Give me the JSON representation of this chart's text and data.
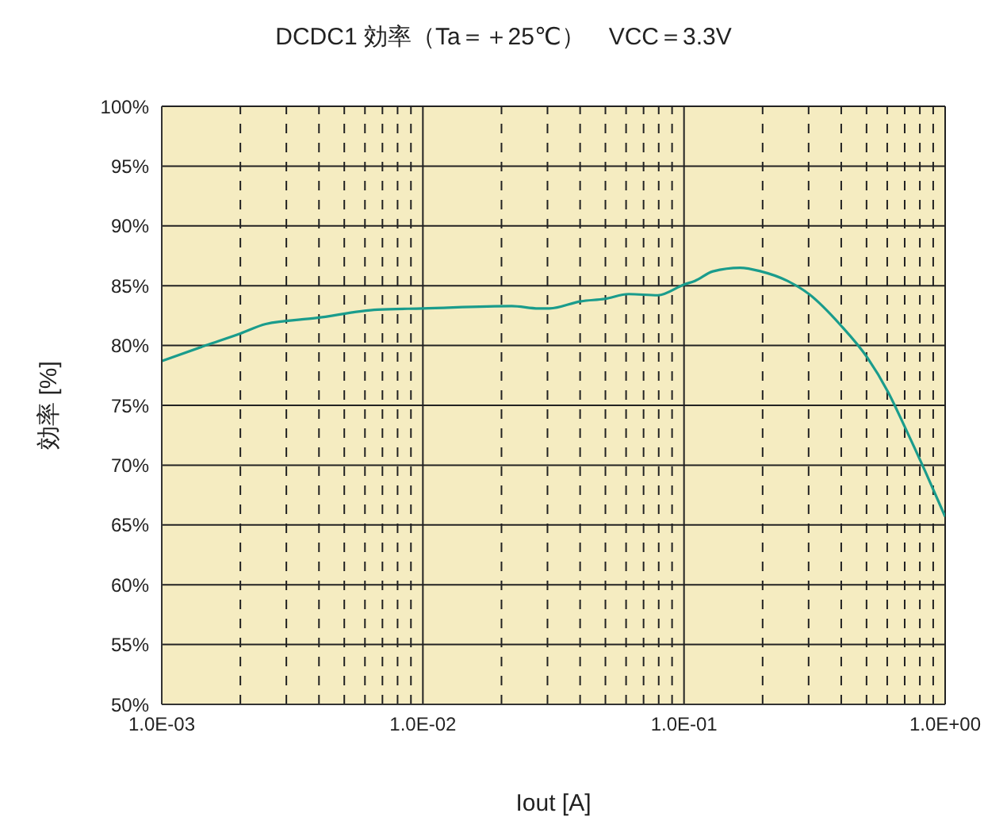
{
  "chart_data": {
    "type": "line",
    "title": "DCDC1 効率（Ta＝＋25℃）　VCC＝3.3V",
    "xlabel": "Iout [A]",
    "ylabel": "効率 [%]",
    "x": [
      0.001,
      0.00147,
      0.002,
      0.0025,
      0.0039,
      0.0067,
      0.01,
      0.0219,
      0.0277,
      0.0305,
      0.0403,
      0.0498,
      0.0614,
      0.0794,
      0.1,
      0.11,
      0.129,
      0.164,
      0.197,
      0.249,
      0.301,
      0.398,
      0.503,
      0.605,
      0.697,
      0.838,
      1.0
    ],
    "series": [
      {
        "color": "#1a9c8c",
        "values": [
          78.7,
          80.0,
          81.0,
          81.8,
          82.3,
          83.0,
          83.1,
          83.3,
          83.1,
          83.1,
          83.7,
          83.9,
          84.3,
          84.2,
          85.1,
          85.4,
          86.2,
          86.5,
          86.2,
          85.4,
          84.3,
          81.7,
          79.0,
          76.1,
          73.3,
          69.5,
          65.7
        ]
      }
    ],
    "log": "x",
    "xlim": [
      0.001,
      1
    ],
    "ylim": [
      50,
      100
    ],
    "xticks": [
      {
        "value": 0.001,
        "label": "1.0E-03"
      },
      {
        "value": 0.002,
        "label": null
      },
      {
        "value": 0.003,
        "label": null
      },
      {
        "value": 0.004,
        "label": null
      },
      {
        "value": 0.005,
        "label": null
      },
      {
        "value": 0.006,
        "label": null
      },
      {
        "value": 0.007,
        "label": null
      },
      {
        "value": 0.008,
        "label": null
      },
      {
        "value": 0.009,
        "label": null
      },
      {
        "value": 0.01,
        "label": "1.0E-02"
      },
      {
        "value": 0.02,
        "label": null
      },
      {
        "value": 0.03,
        "label": null
      },
      {
        "value": 0.04,
        "label": null
      },
      {
        "value": 0.05,
        "label": null
      },
      {
        "value": 0.06,
        "label": null
      },
      {
        "value": 0.07,
        "label": null
      },
      {
        "value": 0.08,
        "label": null
      },
      {
        "value": 0.09,
        "label": null
      },
      {
        "value": 0.1,
        "label": "1.0E-01"
      },
      {
        "value": 0.2,
        "label": null
      },
      {
        "value": 0.3,
        "label": null
      },
      {
        "value": 0.4,
        "label": null
      },
      {
        "value": 0.5,
        "label": null
      },
      {
        "value": 0.6,
        "label": null
      },
      {
        "value": 0.7,
        "label": null
      },
      {
        "value": 0.8,
        "label": null
      },
      {
        "value": 0.9,
        "label": null
      },
      {
        "value": 1,
        "label": "1.0E+00"
      }
    ],
    "yticks": [
      {
        "value": 50,
        "label": "50%"
      },
      {
        "value": 55,
        "label": "55%"
      },
      {
        "value": 60,
        "label": "60%"
      },
      {
        "value": 65,
        "label": "65%"
      },
      {
        "value": 70,
        "label": "70%"
      },
      {
        "value": 75,
        "label": "75%"
      },
      {
        "value": 80,
        "label": "80%"
      },
      {
        "value": 85,
        "label": "85%"
      },
      {
        "value": 90,
        "label": "90%"
      },
      {
        "value": 95,
        "label": "95%"
      },
      {
        "value": 100,
        "label": "100%"
      }
    ],
    "grid": true,
    "marker": "none",
    "line_style": "solid"
  }
}
